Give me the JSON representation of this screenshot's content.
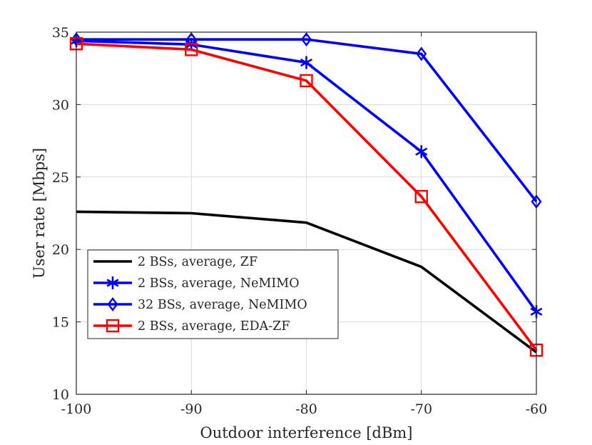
{
  "chart_data": {
    "type": "line",
    "title": "",
    "xlabel": "Outdoor interference [dBm]",
    "ylabel": "User rate [Mbps]",
    "x": [
      -100,
      -90,
      -80,
      -70,
      -60
    ],
    "xlim": [
      -100,
      -60
    ],
    "ylim": [
      10,
      35
    ],
    "xticks": [
      "-100",
      "-90",
      "-80",
      "-70",
      "-60"
    ],
    "yticks": [
      "10",
      "15",
      "20",
      "25",
      "30",
      "35"
    ],
    "grid": true,
    "legend_position": "lower-left",
    "series": [
      {
        "name": "2 BSs, average, ZF",
        "color": "#000000",
        "marker": "none",
        "values": [
          22.6,
          22.5,
          21.85,
          18.8,
          12.9
        ]
      },
      {
        "name": "2 BSs, average, NeMIMO",
        "color": "#0000ff",
        "marker": "asterisk",
        "values": [
          34.4,
          34.15,
          32.9,
          26.75,
          15.7
        ]
      },
      {
        "name": "32 BSs, average, NeMIMO",
        "color": "#0000ff",
        "marker": "diamond",
        "values": [
          34.5,
          34.5,
          34.5,
          33.5,
          23.3
        ]
      },
      {
        "name": "2 BSs, average, EDA-ZF",
        "color": "#ff0000",
        "marker": "square",
        "values": [
          34.2,
          33.8,
          31.65,
          23.65,
          13.05
        ]
      }
    ]
  }
}
